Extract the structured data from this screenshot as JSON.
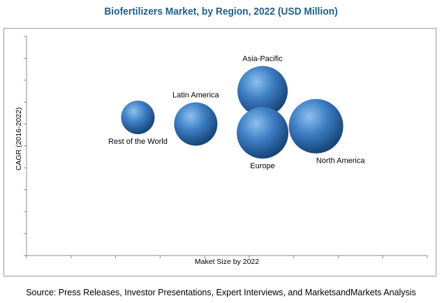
{
  "title": "Biofertilizers Market, by Region, 2022 (USD Million)",
  "source": "Source:  Press Releases, Investor Presentations, Expert Interviews, and MarketsandMarkets Analysis",
  "colors": {
    "bubble_light": "#8cc0ec",
    "bubble_mid": "#3f7fc4",
    "bubble_dark": "#123f72",
    "title": "#1f5f8b"
  },
  "chart_data": {
    "type": "bubble",
    "title": "Biofertilizers Market, by Region, 2022 (USD Million)",
    "xlabel": "Maket Size by 2022",
    "ylabel": "CAGR (2016-2022)",
    "xlim": [
      0,
      9
    ],
    "ylim": [
      0,
      10
    ],
    "x_ticks": 9,
    "y_ticks": 10,
    "grid": false,
    "points": [
      {
        "label": "Rest of the World",
        "x": 2.5,
        "y": 6.3,
        "size": 24,
        "label_pos": "below"
      },
      {
        "label": "Latin America",
        "x": 3.8,
        "y": 6.0,
        "size": 31,
        "label_pos": "above"
      },
      {
        "label": "Asia-Pacific",
        "x": 5.3,
        "y": 7.5,
        "size": 36,
        "label_pos": "above"
      },
      {
        "label": "Europe",
        "x": 5.3,
        "y": 5.6,
        "size": 37,
        "label_pos": "below"
      },
      {
        "label": "North America",
        "x": 6.5,
        "y": 5.9,
        "size": 39,
        "label_pos": "below-right"
      }
    ]
  }
}
